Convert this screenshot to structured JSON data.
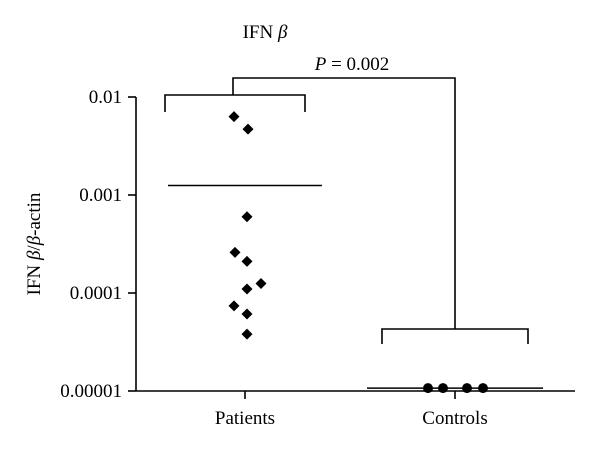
{
  "chart_data": {
    "type": "scatter",
    "title": "IFN β",
    "ylabel": "IFN β/β-actin",
    "yscale": "log",
    "ylim": [
      1e-05,
      0.01
    ],
    "yticks": [
      {
        "value": 0.01,
        "label": "0.01"
      },
      {
        "value": 0.001,
        "label": "0.001"
      },
      {
        "value": 0.0001,
        "label": "0.0001"
      },
      {
        "value": 1e-05,
        "label": "0.00001"
      }
    ],
    "categories": [
      "Patients",
      "Controls"
    ],
    "series": [
      {
        "name": "Patients",
        "marker": "diamond",
        "values": [
          0.0063,
          0.0047,
          0.0006,
          0.00026,
          0.00021,
          0.000125,
          0.00011,
          7.4e-05,
          6.1e-05,
          3.8e-05
        ],
        "mean": 0.00125
      },
      {
        "name": "Controls",
        "marker": "circle",
        "values": [
          1.07e-05,
          1.07e-05,
          1.07e-05,
          1.07e-05
        ],
        "mean": 1.07e-05
      }
    ],
    "annotation": {
      "label": "P = 0.002",
      "p_label": "P",
      "p_rest": " = 0.002"
    },
    "title_parts": {
      "main": "IFN ",
      "greek": "β"
    },
    "ylabel_parts": {
      "a": "IFN ",
      "b": "β",
      "c": "/",
      "d": "β",
      "e": "-actin"
    },
    "colors": {
      "marker": "#000000",
      "axis": "#000000"
    }
  }
}
